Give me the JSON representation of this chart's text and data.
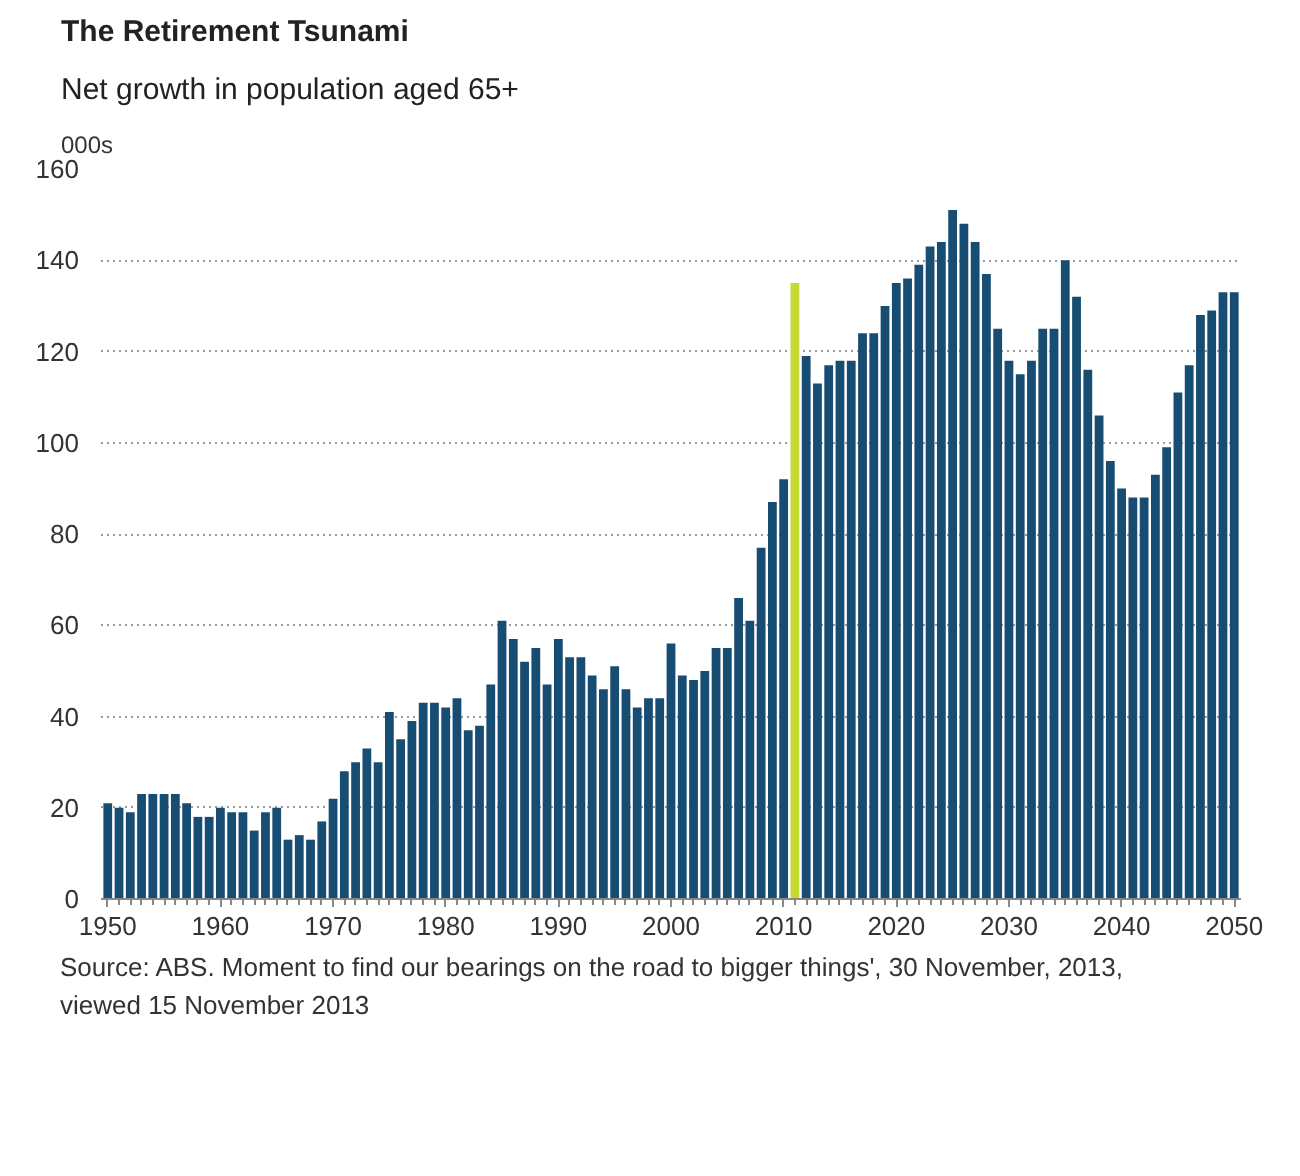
{
  "chart_data": {
    "type": "bar",
    "title": "The Retirement Tsunami",
    "subtitle": "Net growth in population aged 65+",
    "ylabel": "000s",
    "x": [
      1950,
      1951,
      1952,
      1953,
      1954,
      1955,
      1956,
      1957,
      1958,
      1959,
      1960,
      1961,
      1962,
      1963,
      1964,
      1965,
      1966,
      1967,
      1968,
      1969,
      1970,
      1971,
      1972,
      1973,
      1974,
      1975,
      1976,
      1977,
      1978,
      1979,
      1980,
      1981,
      1982,
      1983,
      1984,
      1985,
      1986,
      1987,
      1988,
      1989,
      1990,
      1991,
      1992,
      1993,
      1994,
      1995,
      1996,
      1997,
      1998,
      1999,
      2000,
      2001,
      2002,
      2003,
      2004,
      2005,
      2006,
      2007,
      2008,
      2009,
      2010,
      2011,
      2012,
      2013,
      2014,
      2015,
      2016,
      2017,
      2018,
      2019,
      2020,
      2021,
      2022,
      2023,
      2024,
      2025,
      2026,
      2027,
      2028,
      2029,
      2030,
      2031,
      2032,
      2033,
      2034,
      2035,
      2036,
      2037,
      2038,
      2039,
      2040,
      2041,
      2042,
      2043,
      2044,
      2045,
      2046,
      2047,
      2048,
      2049,
      2050
    ],
    "values": [
      21,
      20,
      19,
      23,
      23,
      23,
      23,
      21,
      18,
      18,
      20,
      19,
      19,
      15,
      19,
      20,
      13,
      14,
      13,
      17,
      22,
      28,
      30,
      33,
      30,
      41,
      35,
      39,
      43,
      43,
      42,
      44,
      37,
      38,
      47,
      61,
      57,
      52,
      55,
      47,
      57,
      53,
      53,
      49,
      46,
      51,
      46,
      42,
      44,
      44,
      56,
      49,
      48,
      50,
      55,
      55,
      66,
      61,
      77,
      87,
      92,
      135,
      119,
      113,
      117,
      118,
      118,
      124,
      124,
      130,
      135,
      136,
      139,
      143,
      144,
      151,
      148,
      144,
      137,
      125,
      118,
      115,
      118,
      125,
      125,
      140,
      132,
      116,
      106,
      96,
      90,
      88,
      88,
      93,
      99,
      111,
      117,
      128,
      129,
      133,
      133
    ],
    "colors": [
      "#184d73",
      "#184d73",
      "#184d73",
      "#184d73",
      "#184d73",
      "#184d73",
      "#184d73",
      "#184d73",
      "#184d73",
      "#184d73",
      "#184d73",
      "#184d73",
      "#184d73",
      "#184d73",
      "#184d73",
      "#184d73",
      "#184d73",
      "#184d73",
      "#184d73",
      "#184d73",
      "#184d73",
      "#184d73",
      "#184d73",
      "#184d73",
      "#184d73",
      "#184d73",
      "#184d73",
      "#184d73",
      "#184d73",
      "#184d73",
      "#184d73",
      "#184d73",
      "#184d73",
      "#184d73",
      "#184d73",
      "#184d73",
      "#184d73",
      "#184d73",
      "#184d73",
      "#184d73",
      "#184d73",
      "#184d73",
      "#184d73",
      "#184d73",
      "#184d73",
      "#184d73",
      "#184d73",
      "#184d73",
      "#184d73",
      "#184d73",
      "#184d73",
      "#184d73",
      "#184d73",
      "#184d73",
      "#184d73",
      "#184d73",
      "#184d73",
      "#184d73",
      "#184d73",
      "#184d73",
      "#184d73",
      "#c5d833",
      "#184d73",
      "#184d73",
      "#184d73",
      "#184d73",
      "#184d73",
      "#184d73",
      "#184d73",
      "#184d73",
      "#184d73",
      "#184d73",
      "#184d73",
      "#184d73",
      "#184d73",
      "#184d73",
      "#184d73",
      "#184d73",
      "#184d73",
      "#184d73",
      "#184d73",
      "#184d73",
      "#184d73",
      "#184d73",
      "#184d73",
      "#184d73",
      "#184d73",
      "#184d73",
      "#184d73",
      "#184d73",
      "#184d73",
      "#184d73",
      "#184d73",
      "#184d73",
      "#184d73",
      "#184d73",
      "#184d73",
      "#184d73",
      "#184d73",
      "#184d73",
      "#184d73"
    ],
    "xlim": [
      1949.4,
      2050.6
    ],
    "xticks": [
      1950,
      1960,
      1970,
      1980,
      1990,
      2000,
      2010,
      2020,
      2030,
      2040,
      2050
    ],
    "ylim": [
      0,
      160
    ],
    "yticks": [
      0,
      20,
      40,
      60,
      80,
      100,
      120,
      140,
      160
    ],
    "grid": "y",
    "annotations": [
      "Source: ABS. Moment to find our bearings on the road to bigger things', 30 November, 2013, viewed 15 November 2013"
    ]
  }
}
